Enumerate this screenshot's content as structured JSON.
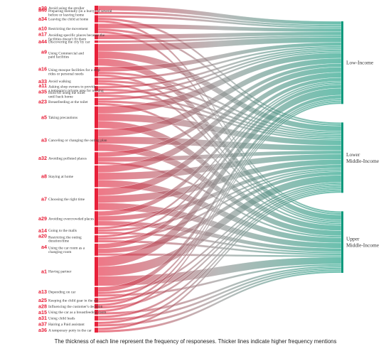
{
  "chart_data": {
    "type": "sankey",
    "caption": "The thickness of each line represent the frequency of responeses. Thicker lines indicate higher frequency mentions",
    "targets": [
      {
        "id": "low",
        "label_lines": [
          "Low-Income"
        ]
      },
      {
        "id": "lower_middle",
        "label_lines": [
          "Lower",
          "Middle-Income"
        ]
      },
      {
        "id": "upper_middle",
        "label_lines": [
          "Upper",
          "Middle-Income"
        ]
      }
    ],
    "sources": [
      {
        "code": "a30",
        "desc": [
          "Avoid using the stroller"
        ],
        "values": [
          2,
          0,
          0
        ]
      },
      {
        "code": "a40",
        "desc": [
          "Preparing mentally (in a hurry) of several",
          "before or leaving home"
        ],
        "values": [
          1,
          0,
          0
        ]
      },
      {
        "code": "a34",
        "desc": [
          "Leaving the child at home"
        ],
        "values": [
          1,
          1,
          1
        ]
      },
      {
        "code": "a10",
        "desc": [
          "Restricting the movement"
        ],
        "values": [
          2,
          1,
          1
        ]
      },
      {
        "code": "a17",
        "desc": [
          "Avoiding specific places because the",
          "facilities doesn't fit them"
        ],
        "values": [
          2,
          0,
          0
        ]
      },
      {
        "code": "a44",
        "desc": [
          "Discovering the city by car"
        ],
        "values": [
          1,
          0,
          0
        ]
      },
      {
        "code": "a9",
        "desc": [
          "Using Commercial and",
          "paid facilities"
        ],
        "values": [
          3,
          3,
          3
        ]
      },
      {
        "code": "a16",
        "desc": [
          "Using mosque facilities for a stop",
          "rides or personal needs"
        ],
        "values": [
          2,
          1,
          1
        ]
      },
      {
        "code": "a33",
        "desc": [
          "Avoid walking"
        ],
        "values": [
          1,
          1,
          1
        ]
      },
      {
        "code": "a11",
        "desc": [
          "Asking shop owners to provide",
          "a temporary private area for nursing"
        ],
        "values": [
          1,
          1,
          0
        ]
      },
      {
        "code": "a35",
        "desc": [
          "Hold off using the toilet",
          "until back home"
        ],
        "values": [
          1,
          1,
          0
        ]
      },
      {
        "code": "a23",
        "desc": [
          "Breastfeeding at the toilet"
        ],
        "values": [
          1,
          1,
          1
        ]
      },
      {
        "code": "a5",
        "desc": [
          "Taking precautions"
        ],
        "values": [
          3,
          3,
          3
        ]
      },
      {
        "code": "a3",
        "desc": [
          "Canceling or changing the outing plan"
        ],
        "values": [
          3,
          3,
          3
        ]
      },
      {
        "code": "a32",
        "desc": [
          "Avoiding polluted places"
        ],
        "values": [
          2,
          2,
          1
        ]
      },
      {
        "code": "a8",
        "desc": [
          "Staying at home"
        ],
        "values": [
          3,
          3,
          3
        ]
      },
      {
        "code": "a7",
        "desc": [
          "Choosing the right time"
        ],
        "values": [
          3,
          3,
          3
        ]
      },
      {
        "code": "a29",
        "desc": [
          "Avoiding overcrowded places"
        ],
        "values": [
          2,
          2,
          2
        ]
      },
      {
        "code": "a14",
        "desc": [
          "Going to the malls"
        ],
        "values": [
          1,
          1,
          1
        ]
      },
      {
        "code": "a20",
        "desc": [
          "Restricting the outing",
          "duration/time"
        ],
        "values": [
          1,
          1,
          1
        ]
      },
      {
        "code": "a4",
        "desc": [
          "Using the car room as a",
          "changing room"
        ],
        "values": [
          2,
          2,
          1
        ]
      },
      {
        "code": "a1",
        "desc": [
          "Having partner"
        ],
        "values": [
          4,
          4,
          4
        ]
      },
      {
        "code": "a13",
        "desc": [
          "Depending on car"
        ],
        "values": [
          2,
          1,
          1
        ]
      },
      {
        "code": "a25",
        "desc": [
          "Keeping the child gear in the car"
        ],
        "values": [
          1,
          1,
          0
        ]
      },
      {
        "code": "a28",
        "desc": [
          "Influencing the customer's decision"
        ],
        "values": [
          1,
          1,
          0
        ]
      },
      {
        "code": "a15",
        "desc": [
          "Using the car as a breastfeeding room"
        ],
        "values": [
          1,
          0,
          1
        ]
      },
      {
        "code": "a31",
        "desc": [
          "Using child leads"
        ],
        "values": [
          0,
          1,
          1
        ]
      },
      {
        "code": "a37",
        "desc": [
          "Hairing a Paid assistant"
        ],
        "values": [
          0,
          1,
          1
        ]
      },
      {
        "code": "a36",
        "desc": [
          "A temporary potty in the car"
        ],
        "values": [
          0,
          1,
          1
        ]
      }
    ],
    "colors": {
      "source_gradient_start": "#e8213a",
      "flow_mid": "#8a8a8a",
      "target_gradient_end": "#0f9a7d",
      "target_bar": "#0f9a7d",
      "source_bar": "#e8213a",
      "background": "#ffffff"
    }
  }
}
